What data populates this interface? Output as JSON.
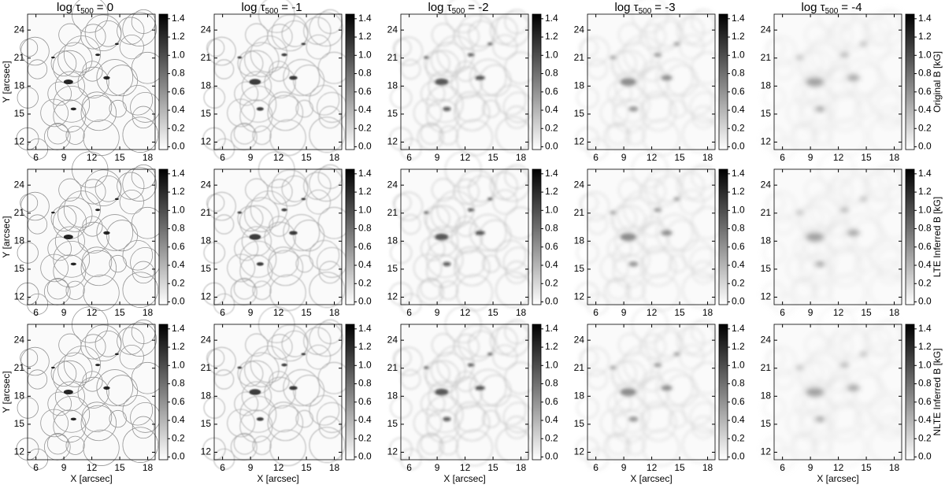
{
  "figure": {
    "title_base": "log τ",
    "title_subscript": "500",
    "columns": [
      "= 0",
      "= -1",
      "= -2",
      "= -3",
      "= -4"
    ],
    "rows": [
      "Original B [kG]",
      "LTE Inferred B [kG]",
      "NLTE Inferred B [kG]"
    ],
    "xlabel": "X [arcsec]",
    "ylabel": "Y [arcsec]",
    "xlim": [
      5.1,
      18.8
    ],
    "ylim": [
      11.2,
      25.7
    ],
    "xticks": [
      6,
      9,
      12,
      15,
      18
    ],
    "yticks": [
      12,
      15,
      18,
      21,
      24
    ],
    "cbar_lim": [
      -0.03,
      1.45
    ],
    "cbar_ticks": [
      {
        "value": 0,
        "label": "0.0"
      },
      {
        "value": 0.2,
        "label": "0.2"
      },
      {
        "value": 0.4,
        "label": "0.4"
      },
      {
        "value": 0.6,
        "label": "0.6"
      },
      {
        "value": 0.8,
        "label": "0.8"
      },
      {
        "value": 1.0,
        "label": "1.0"
      },
      {
        "value": 1.2,
        "label": "1.2"
      },
      {
        "value": 1.4,
        "label": "1.4"
      }
    ]
  }
}
